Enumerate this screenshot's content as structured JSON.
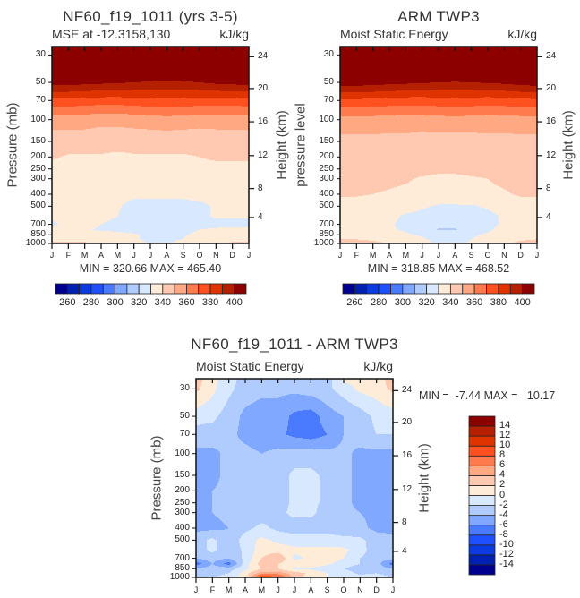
{
  "palette": [
    "#00008f",
    "#0020b0",
    "#0a3ae0",
    "#1f50ff",
    "#4a7bff",
    "#80a8ff",
    "#b0ccff",
    "#d8e8ff",
    "#ffecd8",
    "#ffc8b0",
    "#ffa882",
    "#ff7a4c",
    "#ff5020",
    "#e03400",
    "#b42000",
    "#8c0000"
  ],
  "chart_data": [
    {
      "type": "heatmap",
      "subtype": "filled-contour",
      "title": "NF60_f19_1011 (yrs 3-5)",
      "subtitle": "MSE at -12.3158,130",
      "units": "kJ/kg",
      "ylabel": "Pressure (mb)",
      "ylabel_right": "Height (km)",
      "minmax": "MIN = 320.66 MAX = 465.40",
      "months": [
        "J",
        "F",
        "M",
        "A",
        "M",
        "J",
        "J",
        "A",
        "S",
        "O",
        "N",
        "D",
        "J"
      ],
      "pressure_ticks": [
        "30",
        "50",
        "70",
        "100",
        "150",
        "200",
        "250",
        "300",
        "400",
        "500",
        "700",
        "850",
        "1000"
      ],
      "height_ticks_km": [
        "4",
        "8",
        "12",
        "16",
        "20",
        "24"
      ],
      "contour_levels": [
        260,
        270,
        280,
        290,
        300,
        310,
        320,
        330,
        340,
        350,
        360,
        370,
        380,
        390,
        400
      ],
      "colorbar_labels": [
        "260",
        "280",
        "300",
        "320",
        "340",
        "360",
        "380",
        "400"
      ],
      "pressure_levels": [
        1000,
        925,
        850,
        775,
        700,
        600,
        500,
        400,
        300,
        250,
        200,
        150,
        100,
        70,
        50,
        30,
        25
      ],
      "values": [
        [
          342,
          342,
          342,
          341,
          340,
          336,
          328,
          328,
          335,
          338,
          341,
          342,
          342
        ],
        [
          336,
          336,
          336,
          335,
          334,
          331,
          328,
          328,
          330,
          334,
          336,
          336,
          336
        ],
        [
          334,
          334,
          334,
          334,
          333,
          331,
          328,
          328,
          329,
          333,
          334,
          334,
          334
        ],
        [
          333,
          333,
          331,
          329,
          328,
          327,
          327,
          327,
          327,
          330,
          331,
          332,
          332
        ],
        [
          328,
          333,
          333,
          330,
          328,
          327,
          327,
          327,
          327,
          328,
          328,
          328,
          328
        ],
        [
          332,
          332,
          332,
          332,
          330,
          327,
          327,
          327,
          327,
          328,
          331,
          331,
          331
        ],
        [
          332,
          332,
          332,
          332,
          331,
          327,
          327,
          327,
          327,
          328,
          331,
          332,
          332
        ],
        [
          333,
          333,
          333,
          333,
          333,
          332,
          332,
          332,
          332,
          333,
          333,
          333,
          333
        ],
        [
          335,
          335,
          335,
          335,
          335,
          335,
          335,
          335,
          335,
          336,
          336,
          336,
          336
        ],
        [
          337,
          337,
          337,
          337,
          337,
          337,
          337,
          337,
          337,
          338,
          338,
          338,
          338
        ],
        [
          341,
          339,
          339,
          339,
          338,
          339,
          339,
          339,
          339,
          340,
          341,
          341,
          341
        ],
        [
          345,
          345,
          345,
          344,
          344,
          344,
          344,
          344,
          344,
          344,
          345,
          345,
          345
        ],
        [
          354,
          354,
          354,
          353,
          353,
          354,
          355,
          356,
          355,
          354,
          354,
          354,
          354
        ],
        [
          377,
          377,
          376,
          375,
          375,
          376,
          377,
          378,
          377,
          376,
          376,
          376,
          377
        ],
        [
          404,
          404,
          403,
          402,
          401,
          400,
          398,
          397,
          398,
          400,
          402,
          403,
          404
        ],
        [
          440,
          440,
          440,
          440,
          440,
          440,
          440,
          440,
          440,
          440,
          440,
          440,
          440
        ],
        [
          450,
          450,
          450,
          450,
          450,
          450,
          450,
          450,
          450,
          450,
          450,
          450,
          450
        ]
      ]
    },
    {
      "type": "heatmap",
      "subtype": "filled-contour",
      "title": "ARM TWP3",
      "subtitle": "Moist Static Energy",
      "units": "kJ/kg",
      "ylabel": "pressure level",
      "ylabel_right": "Height (km)",
      "minmax": "MIN = 318.85 MAX = 468.52",
      "months": [
        "J",
        "F",
        "M",
        "A",
        "M",
        "J",
        "J",
        "A",
        "S",
        "O",
        "N",
        "D",
        "J"
      ],
      "pressure_ticks": [
        "30",
        "50",
        "70",
        "100",
        "150",
        "200",
        "250",
        "300",
        "400",
        "500",
        "700",
        "850",
        "1000"
      ],
      "height_ticks_km": [
        "4",
        "8",
        "12",
        "16",
        "20",
        "24"
      ],
      "contour_levels": [
        260,
        270,
        280,
        290,
        300,
        310,
        320,
        330,
        340,
        350,
        360,
        370,
        380,
        390,
        400
      ],
      "colorbar_labels": [
        "260",
        "280",
        "300",
        "320",
        "340",
        "360",
        "380",
        "400"
      ],
      "pressure_levels": [
        1000,
        925,
        850,
        775,
        700,
        600,
        500,
        400,
        300,
        250,
        200,
        150,
        100,
        70,
        50,
        30,
        25
      ],
      "values": [
        [
          343,
          343,
          342,
          340,
          337,
          333,
          328,
          328,
          331,
          335,
          339,
          342,
          343
        ],
        [
          340,
          340,
          339,
          337,
          334,
          331,
          328,
          328,
          330,
          333,
          337,
          339,
          340
        ],
        [
          337,
          337,
          336,
          334,
          331,
          329,
          327,
          327,
          329,
          331,
          334,
          336,
          337
        ],
        [
          336,
          336,
          334,
          331,
          329,
          326,
          319,
          319,
          326,
          329,
          332,
          335,
          336
        ],
        [
          335,
          335,
          334,
          331,
          328,
          326,
          323,
          323,
          326,
          328,
          331,
          334,
          335
        ],
        [
          335,
          335,
          334,
          332,
          329,
          328,
          327,
          327,
          327,
          328,
          331,
          334,
          335
        ],
        [
          336,
          336,
          335,
          334,
          333,
          331,
          329,
          329,
          329,
          331,
          334,
          336,
          336
        ],
        [
          341,
          341,
          340,
          339,
          338,
          337,
          336,
          336,
          337,
          338,
          339,
          341,
          341
        ],
        [
          343,
          343,
          343,
          342,
          341,
          339,
          338,
          338,
          339,
          340,
          342,
          343,
          343
        ],
        [
          344,
          344,
          344,
          344,
          343,
          343,
          342,
          342,
          343,
          343,
          344,
          344,
          344
        ],
        [
          345,
          345,
          345,
          345,
          345,
          345,
          345,
          345,
          345,
          345,
          345,
          345,
          345
        ],
        [
          347,
          347,
          347,
          347,
          347,
          346,
          346,
          346,
          346,
          347,
          347,
          347,
          347
        ],
        [
          356,
          356,
          356,
          355,
          355,
          355,
          356,
          356,
          356,
          355,
          355,
          356,
          356
        ],
        [
          378,
          378,
          377,
          376,
          375,
          375,
          376,
          377,
          376,
          375,
          376,
          377,
          378
        ],
        [
          405,
          405,
          404,
          403,
          402,
          401,
          400,
          399,
          400,
          401,
          402,
          404,
          405
        ],
        [
          440,
          440,
          440,
          440,
          440,
          440,
          440,
          440,
          440,
          440,
          440,
          440,
          440
        ],
        [
          450,
          450,
          450,
          450,
          450,
          450,
          450,
          450,
          450,
          450,
          450,
          450,
          450
        ]
      ]
    },
    {
      "type": "heatmap",
      "subtype": "filled-contour",
      "title": "NF60_f19_1011 - ARM TWP3",
      "subtitle": "Moist Static Energy",
      "units": "kJ/kg",
      "ylabel": "Pressure (mb)",
      "ylabel_right": "Height (km)",
      "minmax": "MIN =  -7.44 MAX =   10.17",
      "months": [
        "J",
        "F",
        "M",
        "A",
        "M",
        "J",
        "J",
        "A",
        "S",
        "O",
        "N",
        "D",
        "J"
      ],
      "pressure_ticks": [
        "30",
        "50",
        "70",
        "100",
        "150",
        "200",
        "250",
        "300",
        "400",
        "500",
        "700",
        "850",
        "1000"
      ],
      "height_ticks_km": [
        "4",
        "8",
        "12",
        "16",
        "20",
        "24"
      ],
      "contour_levels": [
        -14,
        -12,
        -10,
        -8,
        -6,
        -4,
        -2,
        0,
        2,
        4,
        6,
        8,
        10,
        12,
        14
      ],
      "colorbar_labels": [
        "-14",
        "-12",
        "-10",
        "-8",
        "-6",
        "-4",
        "-2",
        "0",
        "2",
        "4",
        "6",
        "8",
        "10",
        "12",
        "14"
      ],
      "pressure_levels": [
        1000,
        925,
        850,
        775,
        700,
        600,
        500,
        400,
        300,
        250,
        200,
        150,
        100,
        70,
        50,
        30,
        25
      ],
      "values": [
        [
          -2,
          -2,
          -1,
          1,
          10,
          9,
          3,
          1,
          0,
          -1,
          -1,
          -1,
          -2
        ],
        [
          -3,
          -3,
          -2,
          1,
          5,
          5,
          3,
          1.5,
          0,
          -1,
          -2.5,
          -2,
          -3
        ],
        [
          -4,
          -3,
          -3,
          -0.5,
          2,
          2,
          -0.5,
          -0.5,
          -1.5,
          -2,
          -3,
          -3,
          -4
        ],
        [
          -7,
          -4,
          -7,
          -1,
          3,
          2,
          1,
          2,
          0.5,
          -1,
          -2,
          -3,
          -7
        ],
        [
          -4,
          -3,
          -4,
          -1.5,
          2,
          4,
          -0.5,
          0.5,
          1,
          0,
          -2,
          -3,
          -3.5
        ],
        [
          -3,
          -1.5,
          -3.5,
          -1.5,
          1,
          1,
          0.5,
          0.5,
          0.5,
          0.5,
          -1,
          -3.5,
          -3.5
        ],
        [
          -3,
          -1.5,
          -3.5,
          -1,
          0.5,
          -0.5,
          -1,
          -1,
          -1,
          -1.5,
          -1.5,
          -3,
          -3.5
        ],
        [
          -4.5,
          -4.5,
          -4,
          -2.5,
          -1.5,
          -2.5,
          -3,
          -3,
          -3,
          -3,
          -3.5,
          -4.5,
          -4.5
        ],
        [
          -4.5,
          -4,
          -3.5,
          -3,
          -3,
          -2.5,
          -1.5,
          -1.5,
          -3,
          -3.5,
          -4,
          -4.5,
          -4.5
        ],
        [
          -4.5,
          -4,
          -3.5,
          -3,
          -3,
          -3,
          -1.5,
          -1.5,
          -2.5,
          -3.5,
          -4.5,
          -4.5,
          -4.5
        ],
        [
          -4.5,
          -4,
          -3.5,
          -3,
          -3,
          -3,
          -1.5,
          -1.5,
          -2.5,
          -3.5,
          -4.5,
          -4.5,
          -4.5
        ],
        [
          -4.5,
          -4.5,
          -3.5,
          -3,
          -3,
          -3,
          -1.5,
          -1.5,
          -2.5,
          -3.5,
          -4.5,
          -4.5,
          -4.5
        ],
        [
          -4.5,
          -4.5,
          -3.5,
          -3.5,
          -4,
          -3.5,
          -3,
          -3,
          -3.5,
          -3.5,
          -4.5,
          -4.5,
          -4.5
        ],
        [
          -3,
          -3,
          -3.5,
          -4.5,
          -5,
          -5.5,
          -6.5,
          -7,
          -6,
          -4,
          -3,
          -2,
          -2
        ],
        [
          -1,
          -1.5,
          -3,
          -4.5,
          -5,
          -5,
          -6.5,
          -7,
          -5,
          -4,
          -3,
          -1.5,
          -1
        ],
        [
          2.5,
          0.5,
          -1.5,
          -3,
          -3.5,
          -3.5,
          -3.5,
          -3,
          -2.5,
          -1,
          0.5,
          1,
          2.5
        ],
        [
          3,
          0.5,
          -1,
          -3,
          -3,
          -3,
          -3,
          -3,
          -3,
          0.5,
          0.5,
          1,
          3
        ]
      ]
    }
  ]
}
